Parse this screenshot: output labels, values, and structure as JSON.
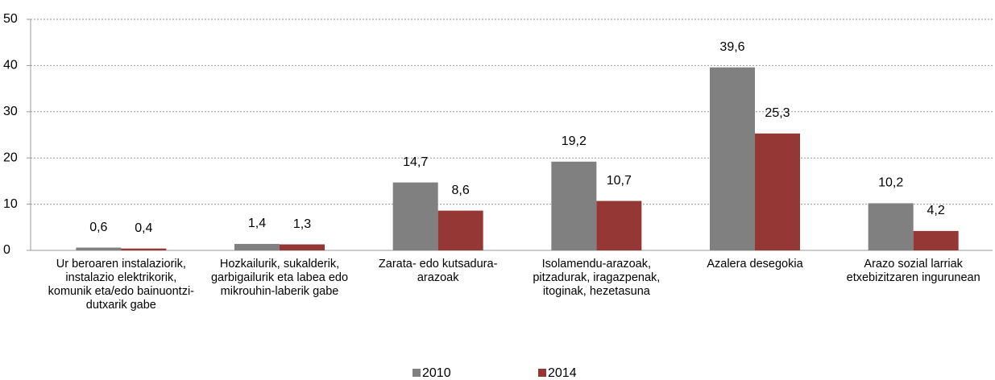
{
  "chart_data": {
    "type": "bar",
    "categories": [
      "Ur beroaren instalaziorik, instalazio elektrikorik, komunik eta/edo bainuontzi-dutxarik gabe",
      "Hozkailurik, sukalderik, garbigailurik eta labea edo mikrouhin-laberik gabe",
      "Zarata- edo kutsadura-arazoak",
      "Isolamendu-arazoak, pitzadurak, iragazpenak, itoginak, hezetasuna",
      "Azalera desegokia",
      "Arazo sozial larriak etxebizitzaren ingurunean"
    ],
    "series": [
      {
        "name": "2010",
        "color": "#808080",
        "values": [
          0.6,
          1.4,
          14.7,
          19.2,
          39.6,
          10.2
        ],
        "value_labels": [
          "0,6",
          "1,4",
          "14,7",
          "19,2",
          "39,6",
          "10,2"
        ]
      },
      {
        "name": "2014",
        "color": "#953735",
        "values": [
          0.4,
          1.3,
          8.6,
          10.7,
          25.3,
          4.2
        ],
        "value_labels": [
          "0,4",
          "1,3",
          "8,6",
          "10,7",
          "25,3",
          "4,2"
        ]
      }
    ],
    "ylim": [
      0,
      50
    ],
    "yticks": [
      0,
      10,
      20,
      30,
      40,
      50
    ],
    "grid": true,
    "legend": "bottom"
  }
}
